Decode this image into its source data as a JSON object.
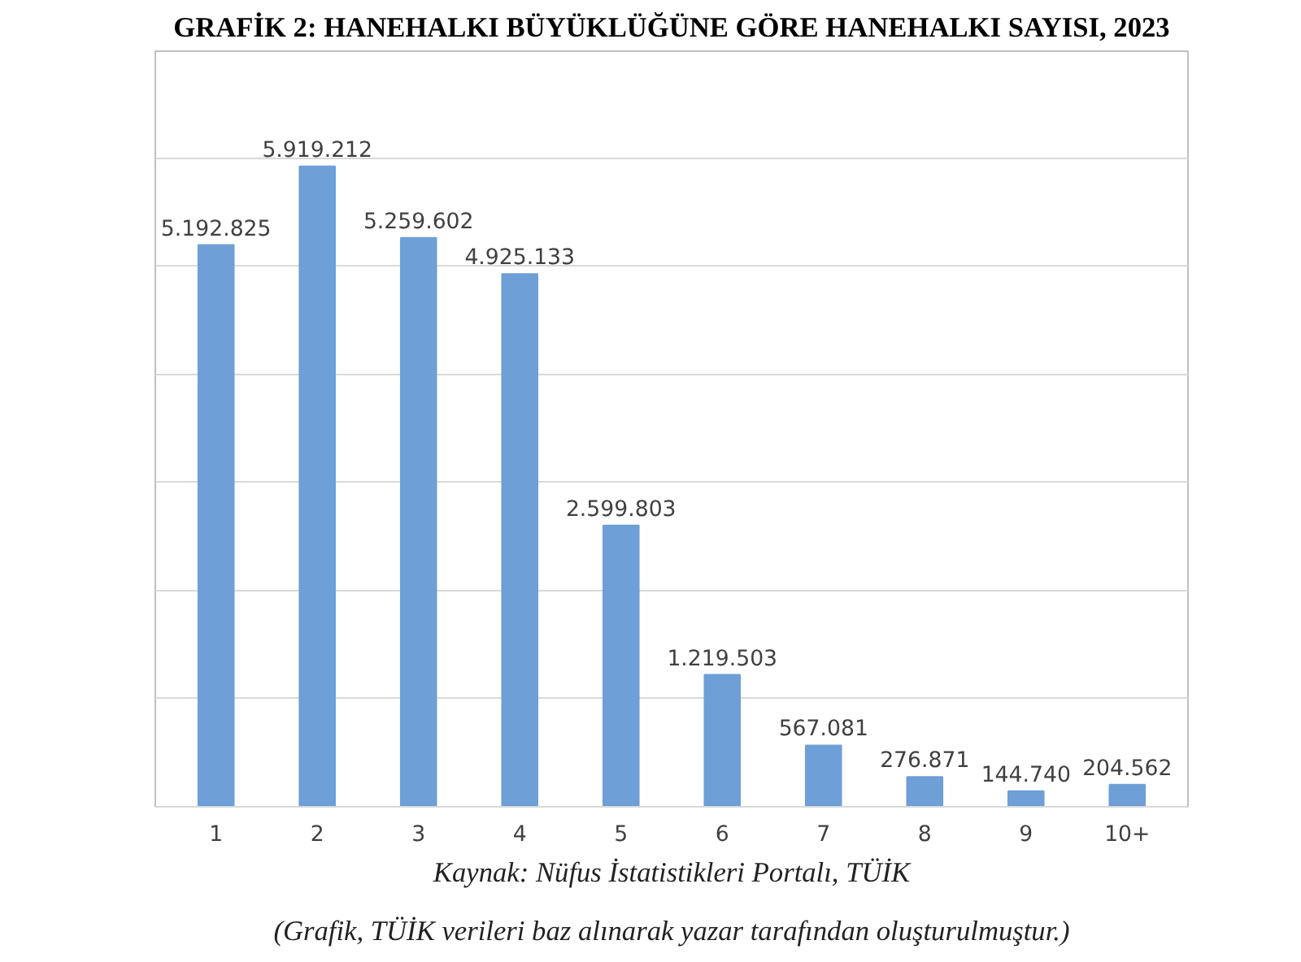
{
  "chart_data": {
    "type": "bar",
    "title": "GRAFİK 2: HANEHALKI BÜYÜKLÜĞÜNE GÖRE HANEHALKI SAYISI, 2023",
    "categories": [
      "1",
      "2",
      "3",
      "4",
      "5",
      "6",
      "7",
      "8",
      "9",
      "10+"
    ],
    "values": [
      5192825,
      5919212,
      5259602,
      4925133,
      2599803,
      1219503,
      567081,
      276871,
      144740,
      204562
    ],
    "color": "#6e9fd6",
    "value_labels": [
      "5.192.825",
      "5.919.212",
      "5.259.602",
      "4.925.133",
      "2.599.803",
      "1.219.503",
      "567.081",
      "276.871",
      "144.740",
      "204.562"
    ],
    "grid": "y",
    "tick_labels": "x",
    "annotations": [
      "Kaynak: Nüfus İstatistikleri Portalı, TÜİK",
      "(Grafik, TÜİK verileri baz alınarak yazar tarafından oluşturulmuştur.)"
    ]
  }
}
